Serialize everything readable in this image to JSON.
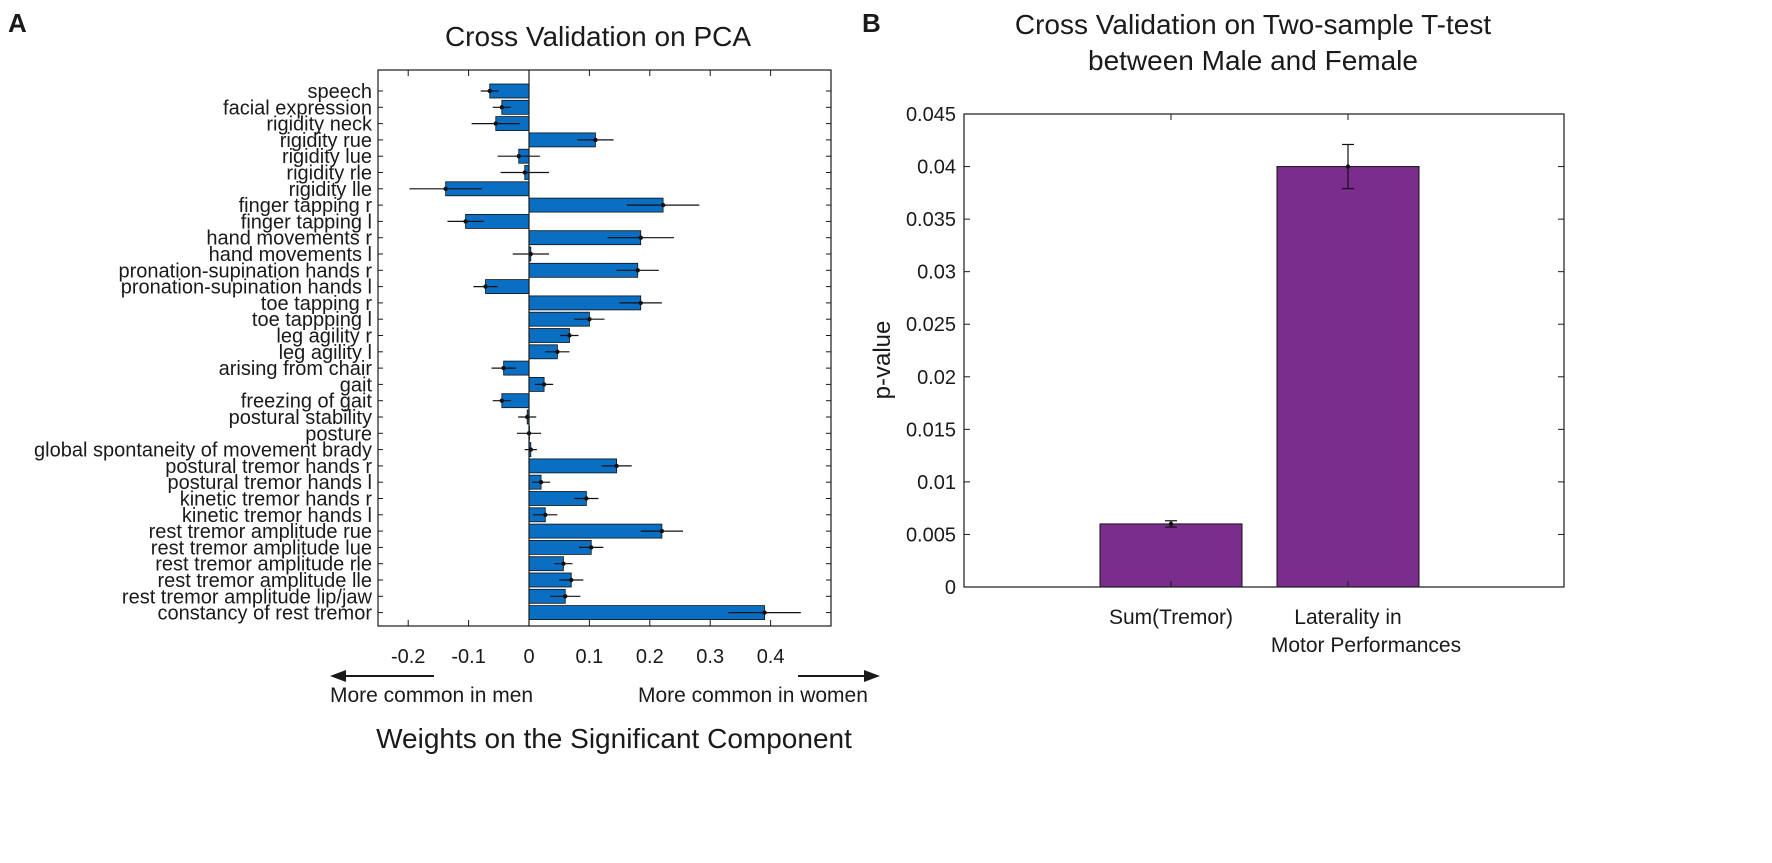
{
  "panel_labels": {
    "a": "A",
    "b": "B"
  },
  "colors": {
    "barA": "#0a6fc2",
    "barB": "#7b2d8e",
    "axis": "#1a1a1a"
  },
  "chart_data": [
    {
      "type": "bar",
      "orientation": "horizontal",
      "title": "Cross Validation on PCA",
      "xlabel": "Weights on the Significant Component",
      "xlim": [
        -0.25,
        0.5
      ],
      "xticks": [
        -0.2,
        -0.1,
        0,
        0.1,
        0.2,
        0.3,
        0.4
      ],
      "xtick_labels": [
        "-0.2",
        "-0.1",
        "0",
        "0.1",
        "0.2",
        "0.3",
        "0.4"
      ],
      "arrow_left_label": "More common in men",
      "arrow_right_label": "More common in women",
      "categories": [
        "speech",
        "facial expression",
        "rigidity neck",
        "rigidity rue",
        "rigidity lue",
        "rigidity rle",
        "rigidity lle",
        "finger tapping r",
        "finger tapping l",
        "hand movements r",
        "hand movements l",
        "pronation-supination hands r",
        "pronation-supination hands l",
        "toe tapping r",
        "toe tappping l",
        "leg agility r",
        "leg agility l",
        "arising from chair",
        "gait",
        "freezing of gait",
        "postural stability",
        "posture",
        "global spontaneity of movement brady",
        "postural tremor hands r",
        "postural tremor hands l",
        "kinetic tremor hands r",
        "kinetic tremor hands l",
        "rest tremor amplitude rue",
        "rest tremor amplitude lue",
        "rest tremor amplitude rle",
        "rest tremor amplitude lle",
        "rest tremor amplitude lip/jaw",
        "constancy of rest tremor"
      ],
      "values": [
        -0.065,
        -0.045,
        -0.055,
        0.11,
        -0.017,
        -0.007,
        -0.138,
        0.222,
        -0.105,
        0.185,
        0.003,
        0.18,
        -0.072,
        0.185,
        0.1,
        0.067,
        0.047,
        -0.042,
        0.025,
        -0.045,
        -0.003,
        0,
        0.003,
        0.145,
        0.02,
        0.095,
        0.027,
        0.22,
        0.103,
        0.057,
        0.07,
        0.06,
        0.39
      ],
      "errors": [
        0.015,
        0.015,
        0.04,
        0.03,
        0.035,
        0.04,
        0.06,
        0.06,
        0.03,
        0.055,
        0.03,
        0.035,
        0.02,
        0.035,
        0.025,
        0.015,
        0.02,
        0.02,
        0.015,
        0.015,
        0.015,
        0.02,
        0.01,
        0.025,
        0.015,
        0.02,
        0.02,
        0.035,
        0.02,
        0.015,
        0.02,
        0.025,
        0.06
      ]
    },
    {
      "type": "bar",
      "title_line1": "Cross Validation on Two-sample T-test",
      "title_line2": "between Male and Female",
      "ylabel": "p-value",
      "ylim": [
        0,
        0.045
      ],
      "yticks": [
        0,
        0.005,
        0.01,
        0.015,
        0.02,
        0.025,
        0.03,
        0.035,
        0.04,
        0.045
      ],
      "ytick_labels": [
        "0",
        "0.005",
        "0.01",
        "0.015",
        "0.02",
        "0.025",
        "0.03",
        "0.035",
        "0.04",
        "0.045"
      ],
      "categories": [
        {
          "line1": "Sum(Tremor)",
          "line2": ""
        },
        {
          "line1": "Laterality in",
          "line2": "Motor Performances"
        }
      ],
      "values": [
        0.006,
        0.04
      ],
      "errors": [
        0.0003,
        0.0021
      ]
    }
  ]
}
